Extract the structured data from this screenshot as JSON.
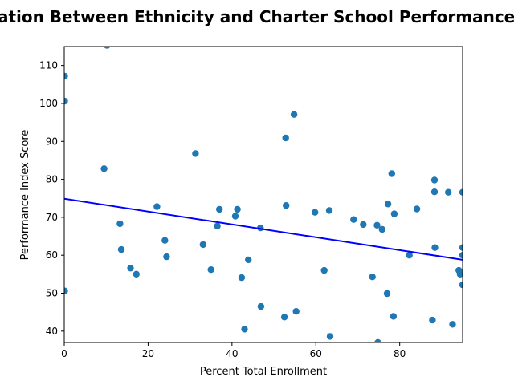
{
  "chart_data": {
    "type": "scatter",
    "title": "Correlation Between Ethnicity and Charter School Performance Score",
    "xlabel": "Percent Total Enrollment",
    "ylabel": "Performance Index Score",
    "xlim": [
      0,
      95
    ],
    "ylim": [
      37,
      115
    ],
    "xticks": [
      0,
      20,
      40,
      60,
      80
    ],
    "yticks": [
      40,
      50,
      60,
      70,
      80,
      90,
      100,
      110
    ],
    "grid": false,
    "legend": "none",
    "colors": {
      "points": "#1f77b4",
      "trendline": "#0000ff"
    },
    "series": [
      {
        "points": [
          [
            0.1,
            107.2
          ],
          [
            0.1,
            100.6
          ],
          [
            0.1,
            50.6
          ],
          [
            10.2,
            115.3
          ],
          [
            9.5,
            82.8
          ],
          [
            13.3,
            68.3
          ],
          [
            13.6,
            61.5
          ],
          [
            15.8,
            56.6
          ],
          [
            17.2,
            55.0
          ],
          [
            22.1,
            72.8
          ],
          [
            24.0,
            63.9
          ],
          [
            24.4,
            59.6
          ],
          [
            31.3,
            86.8
          ],
          [
            33.1,
            62.8
          ],
          [
            35.0,
            56.2
          ],
          [
            36.5,
            67.7
          ],
          [
            37.0,
            72.1
          ],
          [
            40.8,
            70.3
          ],
          [
            41.3,
            72.1
          ],
          [
            42.3,
            54.1
          ],
          [
            43.0,
            40.5
          ],
          [
            43.9,
            58.8
          ],
          [
            46.8,
            67.2
          ],
          [
            46.9,
            46.5
          ],
          [
            52.5,
            43.7
          ],
          [
            52.8,
            90.9
          ],
          [
            52.9,
            73.1
          ],
          [
            54.8,
            97.1
          ],
          [
            55.3,
            45.2
          ],
          [
            59.8,
            71.3
          ],
          [
            62.0,
            56.0
          ],
          [
            63.2,
            71.8
          ],
          [
            63.4,
            38.6
          ],
          [
            69.0,
            69.4
          ],
          [
            71.3,
            68.1
          ],
          [
            73.5,
            54.3
          ],
          [
            74.6,
            67.9
          ],
          [
            74.8,
            37.0
          ],
          [
            75.8,
            66.8
          ],
          [
            77.0,
            49.9
          ],
          [
            77.2,
            73.5
          ],
          [
            78.1,
            81.5
          ],
          [
            78.5,
            43.9
          ],
          [
            78.7,
            70.9
          ],
          [
            82.3,
            60.0
          ],
          [
            84.1,
            72.2
          ],
          [
            87.8,
            42.9
          ],
          [
            88.3,
            79.8
          ],
          [
            88.3,
            76.7
          ],
          [
            88.4,
            62.0
          ],
          [
            91.6,
            76.6
          ],
          [
            92.6,
            41.8
          ],
          [
            94.1,
            56.0
          ],
          [
            94.4,
            55.0
          ],
          [
            95.0,
            76.6
          ],
          [
            95.0,
            62.0
          ],
          [
            95.0,
            60.0
          ],
          [
            95.0,
            52.2
          ]
        ]
      }
    ],
    "trendline": {
      "x": [
        0,
        95
      ],
      "y": [
        74.9,
        58.8
      ]
    }
  }
}
